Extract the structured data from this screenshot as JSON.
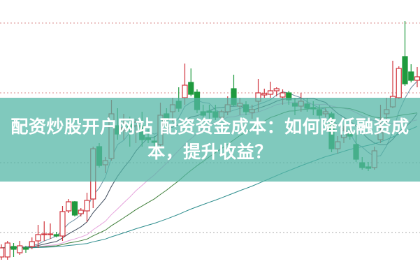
{
  "banner": {
    "title_line1": "配资炒股开户网站 配资资金成本：如何降低融资成",
    "title_line2": "本，提升收益？",
    "color": "#54b6a6"
  },
  "chart_data": {
    "type": "candlestick",
    "title": "",
    "xlabel": "",
    "ylabel": "",
    "ylim": [
      0,
      100
    ],
    "grid": true,
    "gridlines": [
      91.75,
      66.75,
      41.75,
      16.75
    ],
    "colors": {
      "up": "#d0343c",
      "down": "#1f9a3e",
      "grid_upper": "#d88a8a",
      "grid_lower": "#aaaaaa"
    },
    "moving_averages": [
      {
        "period": 5,
        "color": "#6d8fa3"
      },
      {
        "period": 10,
        "color": "#3d4a5c"
      },
      {
        "period": 20,
        "color": "#e6a3dc"
      },
      {
        "period": 30,
        "color": "#3f7f3a"
      },
      {
        "period": 60,
        "color": "#2b8c8c"
      }
    ],
    "candles": [
      [
        8,
        12.5,
        7,
        11.25
      ],
      [
        8,
        13.75,
        7,
        13
      ],
      [
        11.75,
        13,
        8,
        10.75
      ],
      [
        9.5,
        13.75,
        8.75,
        12
      ],
      [
        11.25,
        12,
        9.5,
        10.75
      ],
      [
        11.75,
        15,
        10.75,
        13.5
      ],
      [
        13.75,
        19.5,
        11.25,
        16
      ],
      [
        16,
        20.75,
        13.75,
        16.25
      ],
      [
        16,
        20,
        14.5,
        16.25
      ],
      [
        16,
        17,
        15,
        15.5
      ],
      [
        15.5,
        26.25,
        13.75,
        24.25
      ],
      [
        24.5,
        28.75,
        23.75,
        27.75
      ],
      [
        27.75,
        28,
        22.5,
        23
      ],
      [
        23.5,
        25.5,
        22.5,
        24.75
      ],
      [
        24.5,
        31,
        20.5,
        28.25
      ],
      [
        28.75,
        47.5,
        25.5,
        46.75
      ],
      [
        47.5,
        48.75,
        40,
        40.75
      ],
      [
        41,
        43.75,
        38,
        42.5
      ],
      [
        43.25,
        64.25,
        42.5,
        59.25
      ],
      [
        55,
        61.25,
        50,
        52
      ],
      [
        53.25,
        59.25,
        50,
        54.25
      ],
      [
        55.5,
        58.25,
        47.5,
        54.5
      ],
      [
        55,
        57.5,
        48.75,
        56.25
      ],
      [
        55,
        60,
        47.5,
        50
      ],
      [
        50.75,
        53.75,
        48.75,
        50
      ],
      [
        49.5,
        51.25,
        46.25,
        49
      ],
      [
        48.25,
        63.25,
        47.5,
        58.75
      ],
      [
        59.25,
        61.25,
        53.75,
        57.5
      ],
      [
        60,
        65,
        56.25,
        62.5
      ],
      [
        63.75,
        68.75,
        60,
        61.25
      ],
      [
        65,
        77.25,
        62.5,
        69.5
      ],
      [
        70.5,
        75.5,
        65.5,
        66.25
      ],
      [
        67,
        68,
        59.5,
        60.75
      ],
      [
        60,
        62.5,
        57.5,
        58.75
      ],
      [
        60.25,
        62.5,
        57.5,
        59.75
      ],
      [
        60,
        62.5,
        57,
        58
      ],
      [
        58,
        60.75,
        57,
        60
      ],
      [
        60,
        65.5,
        58.75,
        62.5
      ],
      [
        68.25,
        73.25,
        62,
        62.5
      ],
      [
        62,
        65,
        58.75,
        63
      ],
      [
        62.5,
        63.75,
        58.75,
        60
      ],
      [
        59.75,
        62.5,
        57.5,
        60.75
      ],
      [
        63.75,
        71.75,
        60,
        66.75
      ],
      [
        66,
        68.25,
        65,
        66.5
      ],
      [
        66.25,
        70.75,
        65,
        67.5
      ],
      [
        67.5,
        68.75,
        65.5,
        68.25
      ],
      [
        65.25,
        68,
        62.5,
        66.75
      ],
      [
        66.75,
        67.5,
        62.5,
        64.25
      ],
      [
        63,
        65,
        58.75,
        62
      ],
      [
        62,
        66.75,
        60,
        63.75
      ],
      [
        62.75,
        65,
        60,
        61.25
      ],
      [
        61.5,
        63.75,
        58.75,
        61
      ],
      [
        60.75,
        62.5,
        57.5,
        58.75
      ],
      [
        59.25,
        61.25,
        58,
        60
      ],
      [
        59.25,
        60,
        45.5,
        46.75
      ],
      [
        46.75,
        51.25,
        45,
        49.25
      ],
      [
        50.75,
        55,
        48.75,
        53.25
      ],
      [
        52.5,
        55,
        50,
        51.25
      ],
      [
        48.25,
        52.5,
        42,
        43
      ],
      [
        41.75,
        43.75,
        39.25,
        40
      ],
      [
        40.25,
        42,
        38.75,
        39.75
      ],
      [
        40,
        47.5,
        39.25,
        46
      ],
      [
        50,
        62.5,
        48.75,
        52.5
      ],
      [
        59.25,
        65,
        56.25,
        60.75
      ],
      [
        61.75,
        78.25,
        61.25,
        65.5
      ],
      [
        65,
        76.25,
        64.5,
        75.5
      ],
      [
        79.75,
        92.5,
        69.25,
        70
      ],
      [
        74.25,
        77,
        70.5,
        71.25
      ],
      [
        71.25,
        76,
        68.75,
        72.5
      ]
    ]
  }
}
